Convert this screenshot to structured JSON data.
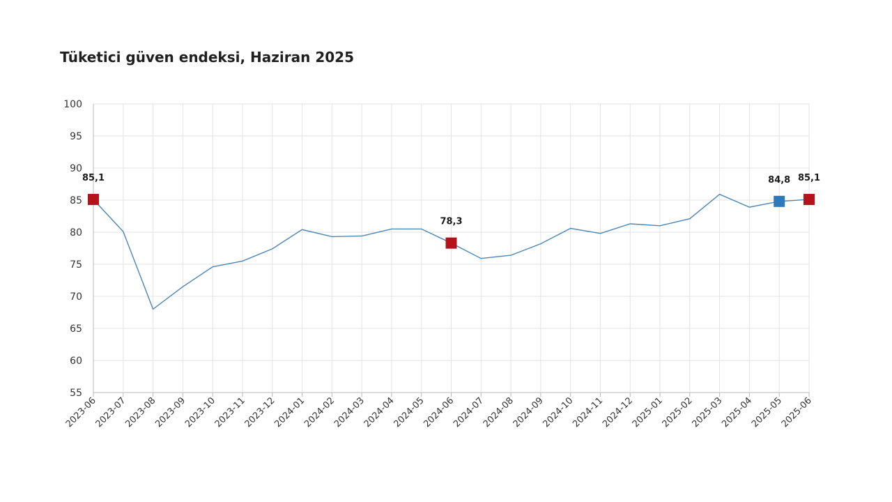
{
  "chart_data": {
    "type": "line",
    "title": "Tüketici güven endeksi, Haziran 2025",
    "xlabel": "",
    "ylabel": "",
    "ylim": [
      55,
      100
    ],
    "yticks": [
      55,
      60,
      65,
      70,
      75,
      80,
      85,
      90,
      95,
      100
    ],
    "grid": true,
    "legend": "none",
    "categories": [
      "2023-06",
      "2023-07",
      "2023-08",
      "2023-09",
      "2023-10",
      "2023-11",
      "2023-12",
      "2024-01",
      "2024-02",
      "2024-03",
      "2024-04",
      "2024-05",
      "2024-06",
      "2024-07",
      "2024-08",
      "2024-09",
      "2024-10",
      "2024-11",
      "2024-12",
      "2025-01",
      "2025-02",
      "2025-03",
      "2025-04",
      "2025-05",
      "2025-06"
    ],
    "series": [
      {
        "values": [
          85.1,
          80.1,
          68.0,
          71.5,
          74.6,
          75.5,
          77.4,
          80.4,
          79.3,
          79.4,
          80.5,
          80.5,
          78.3,
          75.9,
          76.4,
          78.2,
          80.6,
          79.8,
          81.3,
          81.0,
          82.1,
          85.9,
          83.9,
          84.8,
          85.1
        ],
        "color": "#4a86b5"
      }
    ],
    "highlights": [
      {
        "index": 0,
        "label": "85,1",
        "color": "#b5121b"
      },
      {
        "index": 12,
        "label": "78,3",
        "color": "#b5121b"
      },
      {
        "index": 23,
        "label": "84,8",
        "color": "#2e7ab8"
      },
      {
        "index": 24,
        "label": "85,1",
        "color": "#b5121b"
      }
    ]
  }
}
